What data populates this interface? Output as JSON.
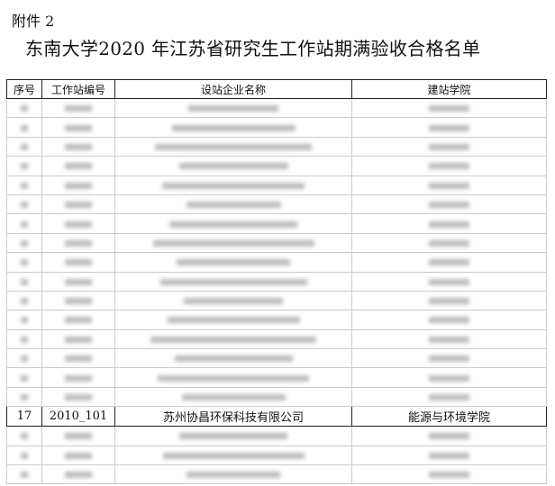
{
  "attachment_label": "附件 2",
  "title": "东南大学2020 年江苏省研究生工作站期满验收合格名单",
  "table": {
    "headers": [
      "序号",
      "工作站编号",
      "设站企业名称",
      "建站学院"
    ],
    "visible_row": {
      "no": "17",
      "code": "2010_101",
      "company": "苏州协昌环保科技有限公司",
      "college": "能源与环境学院"
    },
    "blurred_rows_before": 16,
    "blurred_rows_after": 3
  }
}
